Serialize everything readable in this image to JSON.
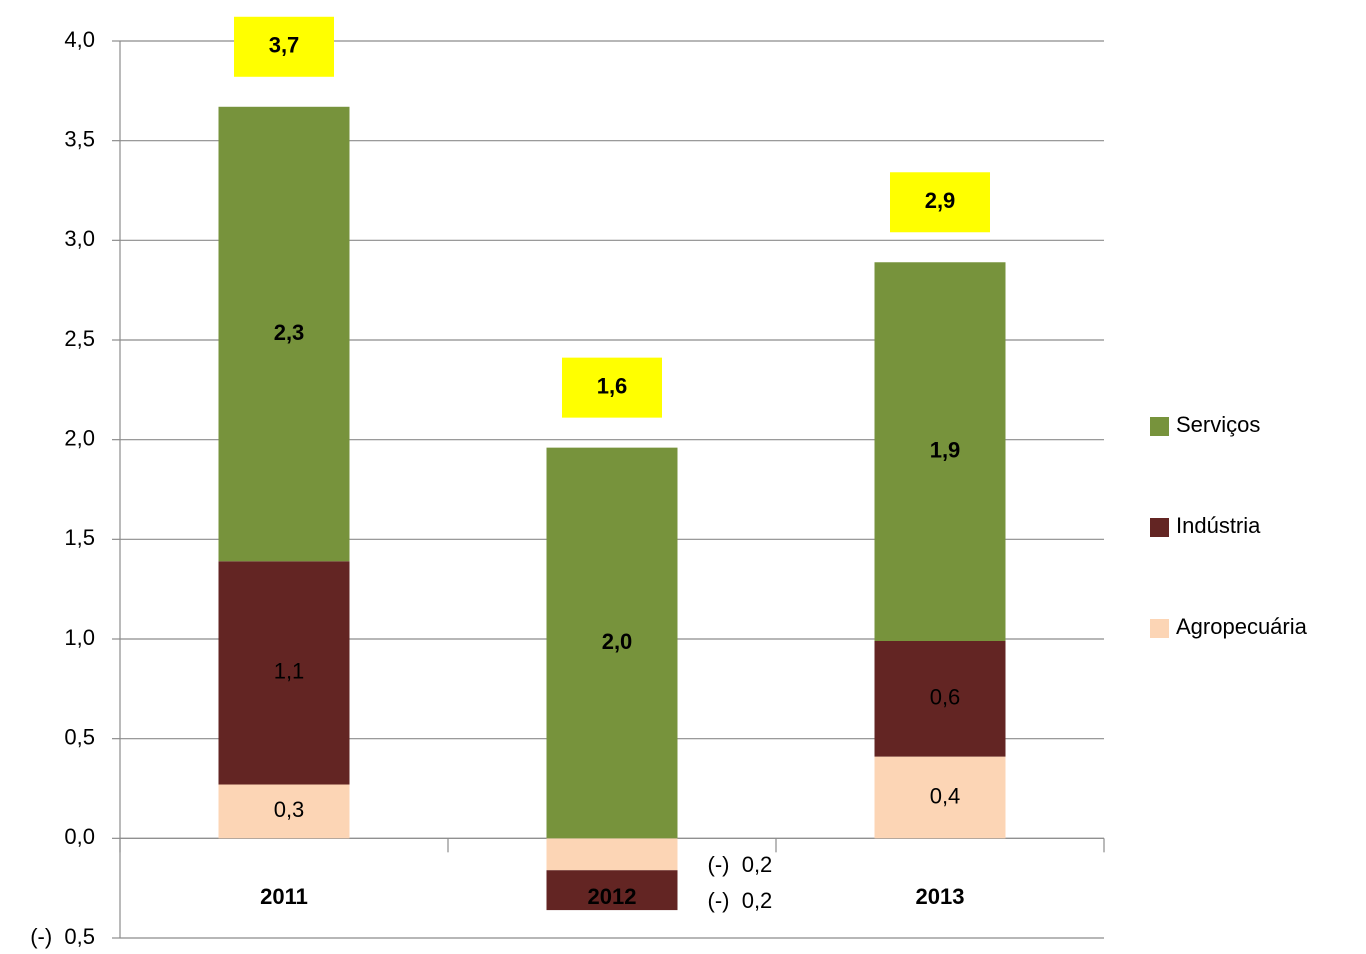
{
  "chart_data": {
    "type": "stacked_bar",
    "categories": [
      "2011",
      "2012",
      "2013"
    ],
    "series": [
      {
        "name": "Agropecuária",
        "color": "#fcd5b5",
        "values": [
          0.27,
          -0.16,
          0.41
        ],
        "value_labels": [
          "0,3",
          "(-)  0,2",
          "0,4"
        ]
      },
      {
        "name": "Indústria",
        "color": "#632523",
        "values": [
          1.12,
          -0.2,
          0.58
        ],
        "value_labels": [
          "1,1",
          "(-)  0,2",
          "0,6"
        ]
      },
      {
        "name": "Serviços",
        "color": "#77933c",
        "values": [
          2.28,
          1.96,
          1.9
        ],
        "value_labels": [
          "2,3",
          "2,0",
          "1,9"
        ]
      }
    ],
    "totals": {
      "values": [
        3.7,
        1.6,
        2.9
      ],
      "value_labels": [
        "3,7",
        "1,6",
        "2,9"
      ],
      "color": "#ffff00"
    },
    "ylim": [
      -0.5,
      4
    ],
    "yticks": [
      {
        "value": -0.5,
        "label": "(-)  0,5"
      },
      {
        "value": 0,
        "label": "0,0"
      },
      {
        "value": 0.5,
        "label": "0,5"
      },
      {
        "value": 1,
        "label": "1,0"
      },
      {
        "value": 1.5,
        "label": "1,5"
      },
      {
        "value": 2,
        "label": "2,0"
      },
      {
        "value": 2.5,
        "label": "2,5"
      },
      {
        "value": 3,
        "label": "3,0"
      },
      {
        "value": 3.5,
        "label": "3,5"
      },
      {
        "value": 4,
        "label": "4,0"
      }
    ],
    "grid": true,
    "legend": "right"
  }
}
